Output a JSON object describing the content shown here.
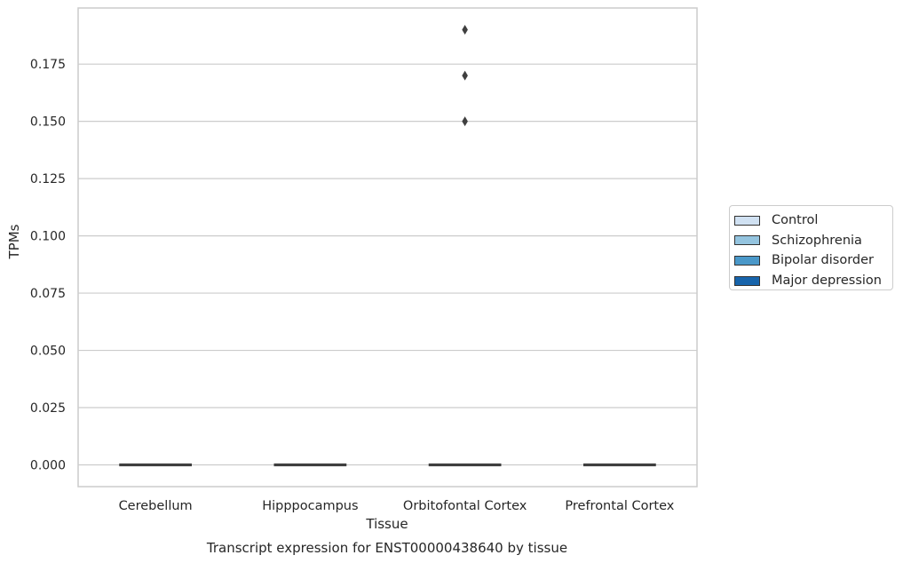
{
  "chart_data": {
    "type": "box",
    "title": "Transcript expression for ENST00000438640 by tissue",
    "xlabel": "Tissue",
    "ylabel": "TPMs",
    "categories": [
      "Cerebellum",
      "Hipppocampus",
      "Orbitofontal Cortex",
      "Prefrontal Cortex"
    ],
    "ylim": [
      -0.0095,
      0.1995
    ],
    "yticks": [
      "0.000",
      "0.025",
      "0.050",
      "0.075",
      "0.100",
      "0.125",
      "0.150",
      "0.175"
    ],
    "grid": true,
    "legend_position": "right",
    "series": [
      {
        "name": "Control",
        "color": "#d0e1f2"
      },
      {
        "name": "Schizophrenia",
        "color": "#94c4df"
      },
      {
        "name": "Bipolar disorder",
        "color": "#4a98c9"
      },
      {
        "name": "Major depression",
        "color": "#1764ab"
      }
    ],
    "boxes": [
      {
        "category": "Cerebellum",
        "min": 0,
        "q1": 0,
        "median": 0,
        "q3": 0,
        "max": 0
      },
      {
        "category": "Hipppocampus",
        "min": 0,
        "q1": 0,
        "median": 0,
        "q3": 0,
        "max": 0
      },
      {
        "category": "Orbitofontal Cortex",
        "min": 0,
        "q1": 0,
        "median": 0,
        "q3": 0,
        "max": 0
      },
      {
        "category": "Prefrontal Cortex",
        "min": 0,
        "q1": 0,
        "median": 0,
        "q3": 0,
        "max": 0
      }
    ],
    "outliers": [
      {
        "category": "Orbitofontal Cortex",
        "y": 0.19
      },
      {
        "category": "Orbitofontal Cortex",
        "y": 0.17
      },
      {
        "category": "Orbitofontal Cortex",
        "y": 0.15
      }
    ]
  }
}
